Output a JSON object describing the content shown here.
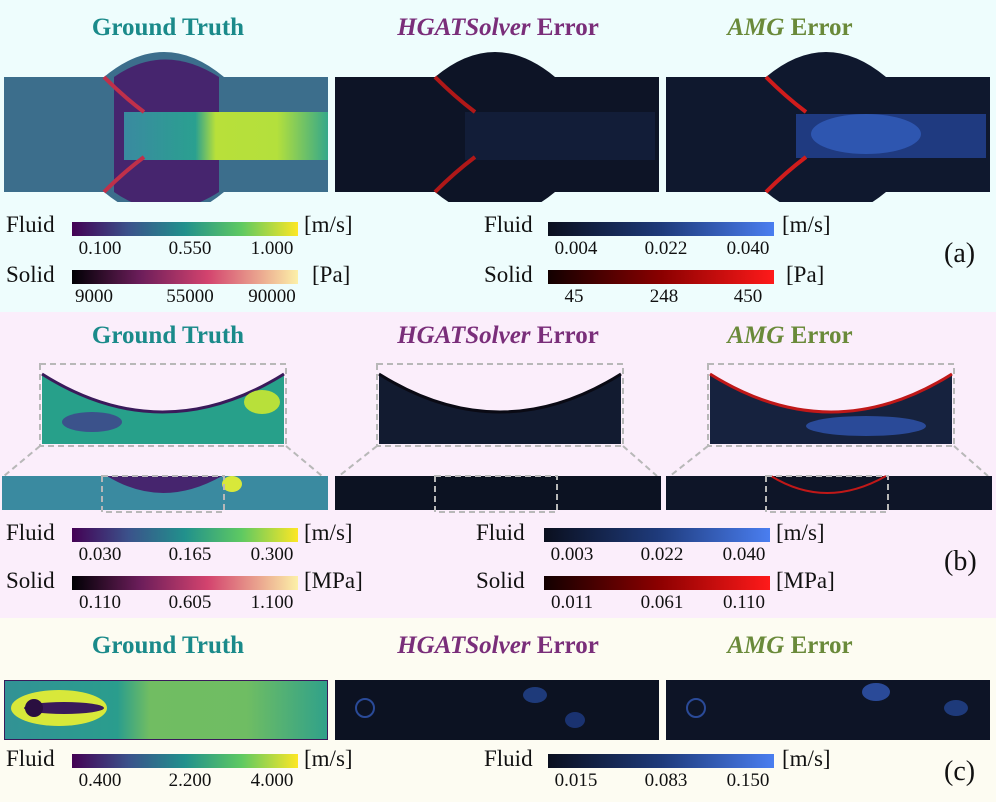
{
  "colors": {
    "band_a": "#eefdfd",
    "band_b": "#fbeefb",
    "band_c": "#fdfcf2",
    "gt_title": "#1a8a8a",
    "hgat_title": "#7a2e7a",
    "amg_title": "#6a8a3a"
  },
  "titles": {
    "ground_truth": "Ground Truth",
    "hgat_name": "HGATSolver",
    "amg_name": "AMG",
    "error_word": " Error"
  },
  "panel_a": {
    "tag": "(a)",
    "gt_fluid": {
      "label": "Fluid",
      "ticks": [
        "0.100",
        "0.550",
        "1.000"
      ],
      "unit": "[m/s]"
    },
    "gt_solid": {
      "label": "Solid",
      "ticks": [
        "9000",
        "55000",
        "90000"
      ],
      "unit": "[Pa]"
    },
    "err_fluid": {
      "label": "Fluid",
      "ticks": [
        "0.004",
        "0.022",
        "0.040"
      ],
      "unit": "[m/s]"
    },
    "err_solid": {
      "label": "Solid",
      "ticks": [
        "45",
        "248",
        "450"
      ],
      "unit": "[Pa]"
    }
  },
  "panel_b": {
    "tag": "(b)",
    "gt_fluid": {
      "label": "Fluid",
      "ticks": [
        "0.030",
        "0.165",
        "0.300"
      ],
      "unit": "[m/s]"
    },
    "gt_solid": {
      "label": "Solid",
      "ticks": [
        "0.110",
        "0.605",
        "1.100"
      ],
      "unit": "[MPa]"
    },
    "err_fluid": {
      "label": "Fluid",
      "ticks": [
        "0.003",
        "0.022",
        "0.040"
      ],
      "unit": "[m/s]"
    },
    "err_solid": {
      "label": "Solid",
      "ticks": [
        "0.011",
        "0.061",
        "0.110"
      ],
      "unit": "[MPa]"
    }
  },
  "panel_c": {
    "tag": "(c)",
    "gt_fluid": {
      "label": "Fluid",
      "ticks": [
        "0.400",
        "2.200",
        "4.000"
      ],
      "unit": "[m/s]"
    },
    "err_fluid": {
      "label": "Fluid",
      "ticks": [
        "0.015",
        "0.083",
        "0.150"
      ],
      "unit": "[m/s]"
    }
  }
}
